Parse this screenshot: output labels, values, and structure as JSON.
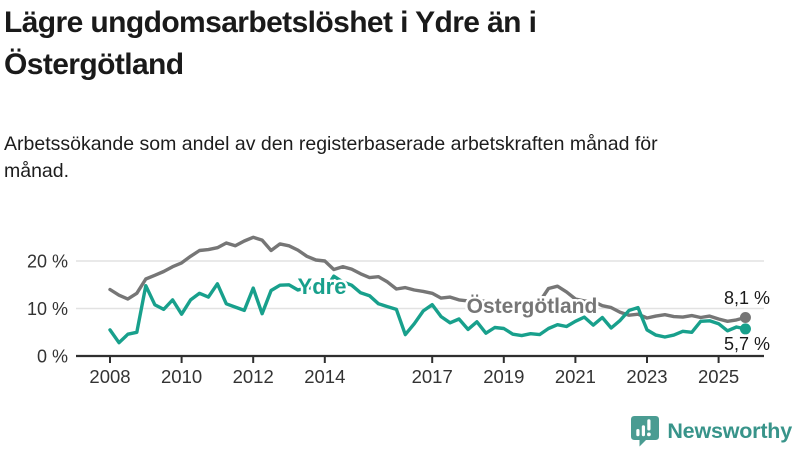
{
  "header": {
    "title": "Lägre ungdomsarbetslöshet i Ydre än i Östergötland",
    "subtitle": "Arbetssökande som andel av den registerbaserade arbetskraften månad för månad."
  },
  "footer": {
    "brand": "Newsworthy",
    "logo_icon": "bar-chart-speech-bubble-icon",
    "brand_color": "#38948a"
  },
  "chart_data": {
    "type": "line",
    "unit": "%",
    "grid": "horizontal-only",
    "x_axis": {
      "start_year": 2008,
      "points_per_year": 4,
      "tick_years": [
        2008,
        2010,
        2012,
        2014,
        2017,
        2019,
        2021,
        2023,
        2025
      ]
    },
    "y_axis": {
      "min": 0,
      "max": 26,
      "ticks": [
        {
          "value": 0,
          "label": "0 %"
        },
        {
          "value": 10,
          "label": "10 %"
        },
        {
          "value": 20,
          "label": "20 %"
        }
      ]
    },
    "series": [
      {
        "name": "Östergötland",
        "color": "#767676",
        "end_value": 8.1,
        "end_label": "8,1 %",
        "values": [
          14.0,
          12.8,
          12.0,
          13.2,
          16.2,
          17.0,
          17.8,
          18.8,
          19.6,
          21.0,
          22.2,
          22.4,
          22.8,
          23.8,
          23.2,
          24.2,
          25.0,
          24.4,
          22.2,
          23.6,
          23.2,
          22.3,
          21.0,
          20.2,
          20.0,
          18.2,
          18.8,
          18.3,
          17.3,
          16.5,
          16.7,
          15.6,
          14.1,
          14.4,
          13.9,
          13.6,
          13.2,
          12.2,
          12.4,
          11.8,
          11.6,
          11.9,
          11.4,
          11.2,
          11.0,
          10.8,
          10.6,
          10.9,
          11.4,
          14.2,
          14.7,
          13.5,
          12.0,
          11.6,
          11.5,
          10.6,
          10.2,
          9.2,
          8.6,
          8.8,
          8.0,
          8.4,
          8.7,
          8.3,
          8.2,
          8.5,
          8.1,
          8.4,
          7.8,
          7.3,
          7.6,
          8.1
        ]
      },
      {
        "name": "Ydre",
        "color": "#18a08c",
        "end_value": 5.7,
        "end_label": "5,7 %",
        "values": [
          5.5,
          2.8,
          4.6,
          5.0,
          14.8,
          10.8,
          9.8,
          11.8,
          8.8,
          11.8,
          13.2,
          12.4,
          15.2,
          11.0,
          10.3,
          9.6,
          14.3,
          8.9,
          13.8,
          14.9,
          15.0,
          13.9,
          14.4,
          14.2,
          13.8,
          16.8,
          15.6,
          14.9,
          13.3,
          12.7,
          11.0,
          10.4,
          9.8,
          4.5,
          6.8,
          9.5,
          10.8,
          8.3,
          7.0,
          7.8,
          5.6,
          7.2,
          4.8,
          6.0,
          5.8,
          4.6,
          4.3,
          4.7,
          4.5,
          5.8,
          6.6,
          6.2,
          7.3,
          8.2,
          6.5,
          8.1,
          5.9,
          7.5,
          9.6,
          10.2,
          5.5,
          4.4,
          4.0,
          4.4,
          5.2,
          5.0,
          7.3,
          7.4,
          6.8,
          5.3,
          6.1,
          5.7
        ]
      }
    ]
  }
}
